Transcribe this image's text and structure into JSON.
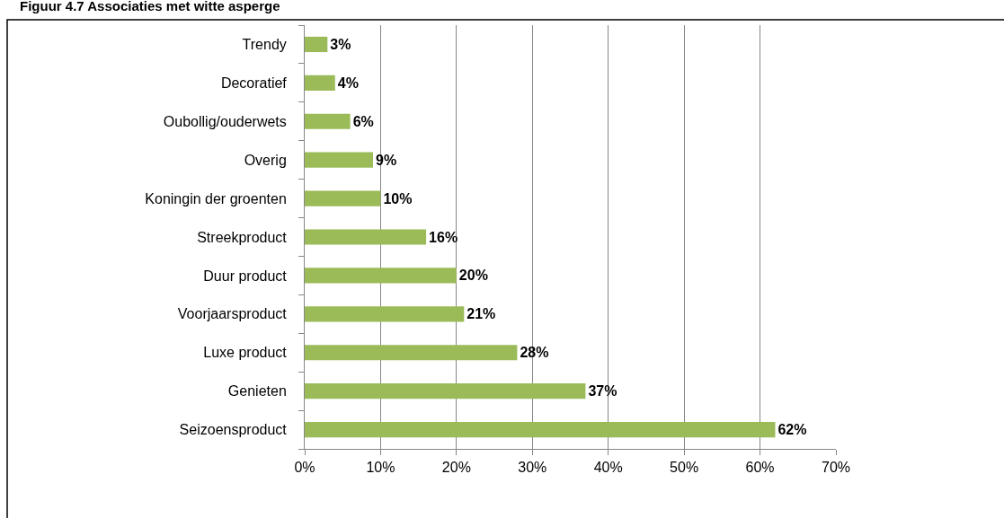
{
  "chart_data": {
    "type": "bar",
    "orientation": "horizontal",
    "title": "Figuur 4.7 Associaties met witte asperge",
    "categories": [
      "Trendy",
      "Decoratief",
      "Oubollig/ouderwets",
      "Overig",
      "Koningin der groenten",
      "Streekproduct",
      "Duur product",
      "Voorjaarsproduct",
      "Luxe product",
      "Genieten",
      "Seizoensproduct"
    ],
    "values": [
      3,
      4,
      6,
      9,
      10,
      16,
      20,
      21,
      28,
      37,
      62
    ],
    "value_labels": [
      "3%",
      "4%",
      "6%",
      "9%",
      "10%",
      "16%",
      "20%",
      "21%",
      "28%",
      "37%",
      "62%"
    ],
    "color": "#9bbb59",
    "xlim": [
      0,
      70
    ],
    "xticks": [
      {
        "value": 0,
        "label": "0%"
      },
      {
        "value": 10,
        "label": "10%"
      },
      {
        "value": 20,
        "label": "20%"
      },
      {
        "value": 30,
        "label": "30%"
      },
      {
        "value": 40,
        "label": "40%"
      },
      {
        "value": 50,
        "label": "50%"
      },
      {
        "value": 60,
        "label": "60%"
      },
      {
        "value": 70,
        "label": "70%"
      }
    ],
    "grid": "x"
  }
}
